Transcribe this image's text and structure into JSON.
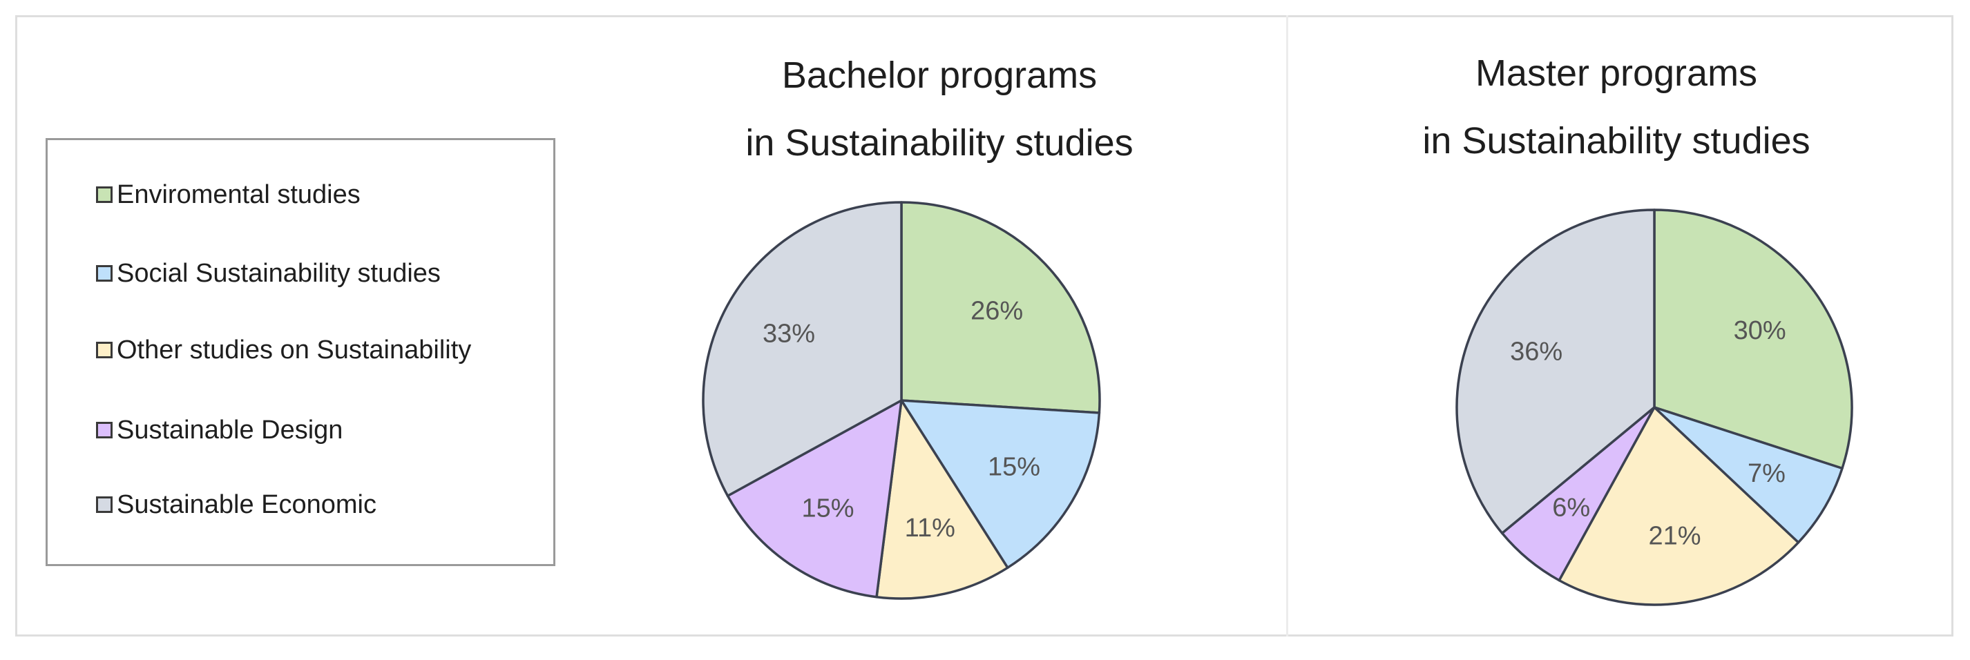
{
  "legend": {
    "items": [
      {
        "label": "Enviromental studies",
        "color": "#c8e3b4",
        "icon": "square-swatch"
      },
      {
        "label": "Social  Sustainability studies",
        "color": "#bfe0fb",
        "icon": "square-swatch"
      },
      {
        "label": "Other studies on Sustainability",
        "color": "#fdefc8",
        "icon": "square-swatch"
      },
      {
        "label": "Sustainable Design",
        "color": "#dcbffc",
        "icon": "square-swatch"
      },
      {
        "label": "Sustainable Economic",
        "color": "#d5dae3",
        "icon": "square-swatch"
      }
    ]
  },
  "chart_data": [
    {
      "type": "pie",
      "title_lines": [
        "Bachelor programs",
        "in Sustainability studies"
      ],
      "categories": [
        "Enviromental studies",
        "Social  Sustainability studies",
        "Other studies on Sustainability",
        "Sustainable Design",
        "Sustainable Economic"
      ],
      "values": [
        26,
        15,
        11,
        15,
        33
      ],
      "labels": [
        "26%",
        "15%",
        "11%",
        "15%",
        "33%"
      ],
      "colors": [
        "#c8e3b4",
        "#bfe0fb",
        "#fdefc8",
        "#dcbffc",
        "#d5dae3"
      ],
      "start": "12 o'clock",
      "direction": "clockwise",
      "legend": "left"
    },
    {
      "type": "pie",
      "title_lines": [
        "Master programs",
        "in Sustainability studies"
      ],
      "categories": [
        "Enviromental studies",
        "Social  Sustainability studies",
        "Other studies on Sustainability",
        "Sustainable Design",
        "Sustainable Economic"
      ],
      "values": [
        30,
        7,
        21,
        6,
        36
      ],
      "labels": [
        "30%",
        "7%",
        "21%",
        "6%",
        "36%"
      ],
      "colors": [
        "#c8e3b4",
        "#bfe0fb",
        "#fdefc8",
        "#dcbffc",
        "#d5dae3"
      ],
      "start": "12 o'clock",
      "direction": "clockwise",
      "legend": "left"
    }
  ]
}
